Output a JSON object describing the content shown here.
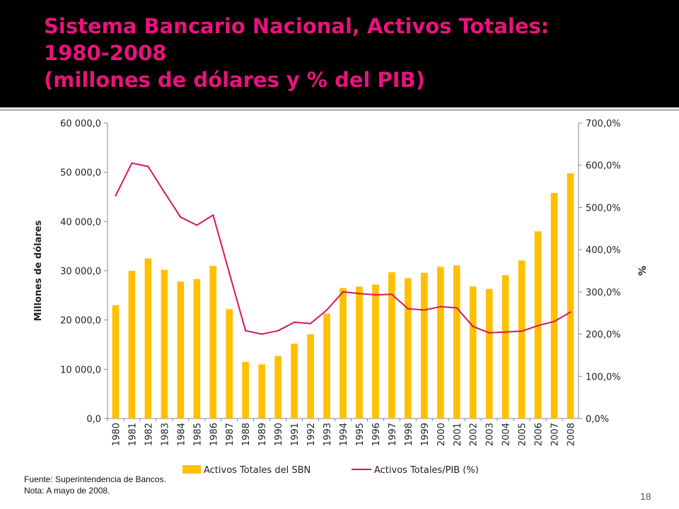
{
  "slide": {
    "title_lines": [
      "Sistema Bancario Nacional, Activos Totales:",
      "1980-2008",
      "(millones de dólares y % del PIB)"
    ],
    "footnotes": [
      "Fuente: Superintendencia de Bancos.",
      "Nota: A mayo de 2008."
    ],
    "page_number": "18"
  },
  "colors": {
    "title": "#e8137d",
    "header_bg": "#000000",
    "bars": "#ffc000",
    "line": "#d6155e"
  },
  "chart_data": {
    "type": "bar",
    "categories": [
      "1980",
      "1981",
      "1982",
      "1983",
      "1984",
      "1985",
      "1986",
      "1987",
      "1988",
      "1989",
      "1990",
      "1991",
      "1992",
      "1993",
      "1994",
      "1995",
      "1996",
      "1997",
      "1998",
      "1999",
      "2000",
      "2001",
      "2002",
      "2003",
      "2004",
      "2005",
      "2006",
      "2007",
      "2008"
    ],
    "series": [
      {
        "name": "Activos Totales del SBN",
        "type": "bar",
        "axis": "left",
        "values": [
          23000,
          30000,
          32500,
          30200,
          27800,
          28300,
          31000,
          22200,
          11500,
          11000,
          12700,
          15200,
          17100,
          21300,
          26500,
          26800,
          27200,
          29700,
          28500,
          29600,
          30800,
          31100,
          26800,
          26300,
          29100,
          32100,
          38000,
          45800,
          49800
        ]
      },
      {
        "name": "Activos Totales/PIB (%)",
        "type": "line",
        "axis": "right",
        "values": [
          528,
          605,
          597,
          536,
          477,
          458,
          482,
          345,
          208,
          200,
          208,
          228,
          225,
          257,
          300,
          296,
          293,
          294,
          260,
          257,
          265,
          262,
          218,
          203,
          205,
          207,
          220,
          230,
          252
        ]
      }
    ],
    "y_left": {
      "label": "Millones de dólares",
      "min": 0,
      "max": 60000,
      "ticks": [
        "0,0",
        "10 000,0",
        "20 000,0",
        "30 000,0",
        "40 000,0",
        "50 000,0",
        "60 000,0"
      ]
    },
    "y_right": {
      "label": "%",
      "min": 0,
      "max": 700,
      "ticks": [
        "0,0%",
        "100,0%",
        "200,0%",
        "300,0%",
        "400,0%",
        "500,0%",
        "600,0%",
        "700,0%"
      ]
    },
    "grid": false,
    "legend_position": "bottom"
  }
}
